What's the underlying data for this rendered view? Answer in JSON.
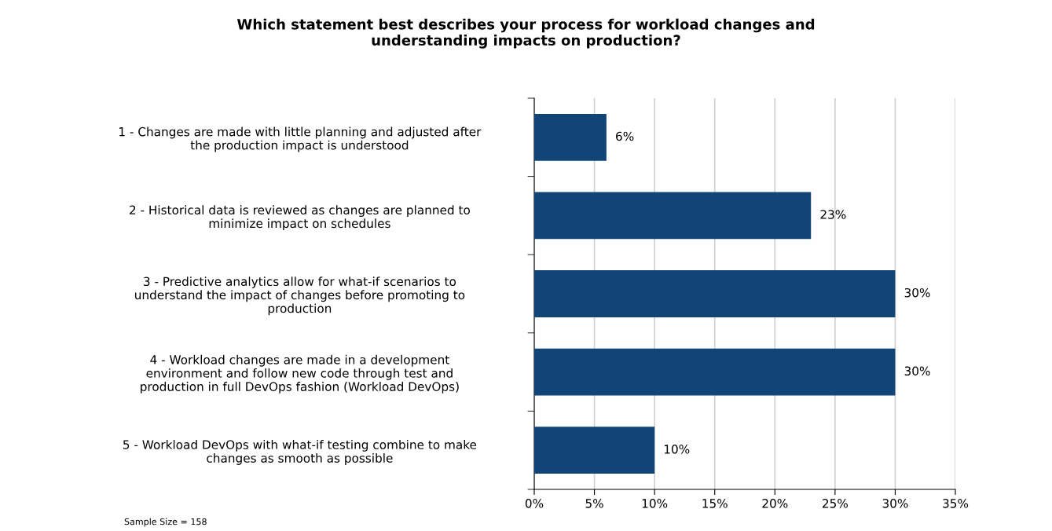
{
  "chart_data": {
    "type": "bar",
    "orientation": "horizontal",
    "title": "Which statement best describes your process for workload changes and\nunderstanding impacts on production?",
    "categories": [
      "1 - Changes are made with little planning and adjusted after\nthe production impact is understood",
      "2 - Historical data is reviewed as changes are planned to\nminimize impact on schedules",
      "3 - Predictive analytics allow for what-if scenarios to\nunderstand the impact of changes before promoting to\nproduction",
      "4 - Workload changes are made in a development\nenvironment and follow new code through test and\nproduction in full DevOps fashion (Workload DevOps)",
      "5 - Workload DevOps with what-if testing combine to make\nchanges as smooth as possible"
    ],
    "values": [
      6,
      23,
      30,
      30,
      10
    ],
    "value_labels": [
      "6%",
      "23%",
      "30%",
      "30%",
      "10%"
    ],
    "color": "#124577",
    "xlim": [
      0,
      35
    ],
    "xticks": [
      {
        "value": 0,
        "label": "0%"
      },
      {
        "value": 5,
        "label": "5%"
      },
      {
        "value": 10,
        "label": "10%"
      },
      {
        "value": 15,
        "label": "15%"
      },
      {
        "value": 20,
        "label": "20%"
      },
      {
        "value": 25,
        "label": "25%"
      },
      {
        "value": 30,
        "label": "30%"
      },
      {
        "value": 35,
        "label": "35%"
      }
    ],
    "grid": "x",
    "annotations": [
      "Sample Size = 158"
    ]
  }
}
